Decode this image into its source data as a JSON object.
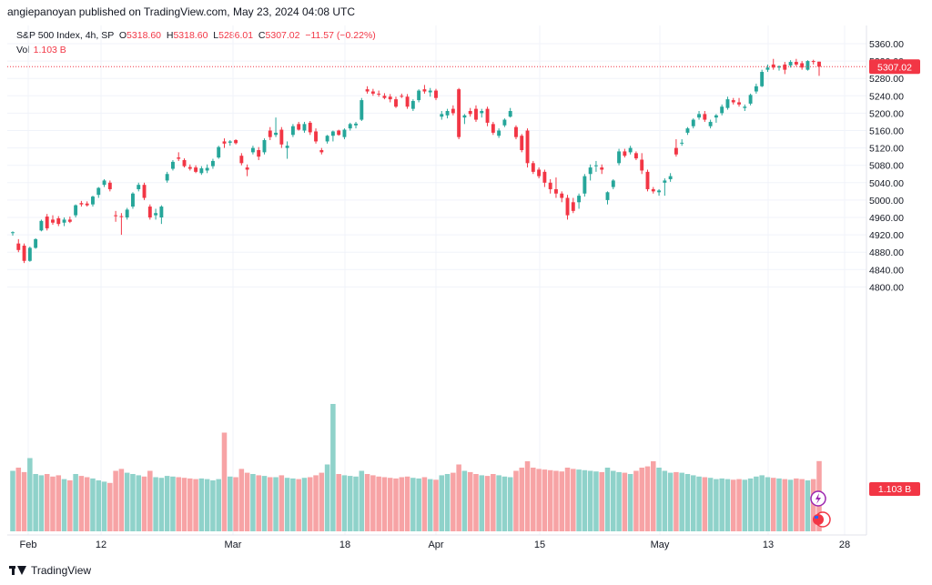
{
  "header": {
    "publisher_line": "angiepanoyan published on TradingView.com, May 23, 2024 04:08 UTC"
  },
  "legend": {
    "symbol": "S&P 500 Index, 4h, SP",
    "open_label": "O",
    "open": "5318.60",
    "high_label": "H",
    "high": "5318.60",
    "low_label": "L",
    "low": "5286.01",
    "close_label": "C",
    "close": "5307.02",
    "change": "−11.57 (−0.22%)",
    "vol_label": "Vol",
    "vol": "1.103 B"
  },
  "price_axis": {
    "ticks": [
      "5360.00",
      "5320.00",
      "5280.00",
      "5240.00",
      "5200.00",
      "5160.00",
      "5120.00",
      "5080.00",
      "5040.00",
      "5000.00",
      "4960.00",
      "4920.00",
      "4880.00",
      "4840.00",
      "4800.00"
    ],
    "last_price_label": "5307.02",
    "volume_label": "1.103 B"
  },
  "time_axis": {
    "labels": [
      "Feb",
      "12",
      "Mar",
      "18",
      "Apr",
      "15",
      "May",
      "13",
      "28"
    ]
  },
  "footer": {
    "brand": "TradingView"
  },
  "colors": {
    "up": "#26a69a",
    "down": "#f23645",
    "vol_up": "#8fd2ca",
    "vol_down": "#f7a3a5",
    "grid": "#f0f3fa",
    "axis_text": "#131722"
  },
  "chart_data": {
    "type": "candlestick",
    "symbol": "S&P 500 Index",
    "interval": "4h",
    "ylim": [
      4800,
      5380
    ],
    "last_price": 5307.02,
    "last_volume_billions": 1.103,
    "candles": [
      {
        "o": 4924,
        "h": 4928,
        "l": 4918,
        "c": 4926,
        "v": 0.95
      },
      {
        "o": 4900,
        "h": 4910,
        "l": 4880,
        "c": 4885,
        "v": 1.0
      },
      {
        "o": 4895,
        "h": 4900,
        "l": 4855,
        "c": 4860,
        "v": 0.93
      },
      {
        "o": 4860,
        "h": 4893,
        "l": 4858,
        "c": 4890,
        "v": 1.15
      },
      {
        "o": 4890,
        "h": 4912,
        "l": 4888,
        "c": 4910,
        "v": 0.9
      },
      {
        "o": 4930,
        "h": 4955,
        "l": 4928,
        "c": 4952,
        "v": 0.88
      },
      {
        "o": 4962,
        "h": 4968,
        "l": 4930,
        "c": 4935,
        "v": 0.9
      },
      {
        "o": 4955,
        "h": 4965,
        "l": 4943,
        "c": 4948,
        "v": 0.86
      },
      {
        "o": 4958,
        "h": 4963,
        "l": 4940,
        "c": 4945,
        "v": 0.88
      },
      {
        "o": 4948,
        "h": 4960,
        "l": 4940,
        "c": 4955,
        "v": 0.82
      },
      {
        "o": 4955,
        "h": 4962,
        "l": 4947,
        "c": 4950,
        "v": 0.8
      },
      {
        "o": 4965,
        "h": 4990,
        "l": 4960,
        "c": 4988,
        "v": 0.9
      },
      {
        "o": 4993,
        "h": 4998,
        "l": 4985,
        "c": 4990,
        "v": 0.87
      },
      {
        "o": 4992,
        "h": 4997,
        "l": 4985,
        "c": 4988,
        "v": 0.85
      },
      {
        "o": 4990,
        "h": 5010,
        "l": 4985,
        "c": 5008,
        "v": 0.83
      },
      {
        "o": 5012,
        "h": 5030,
        "l": 5005,
        "c": 5028,
        "v": 0.8
      },
      {
        "o": 5035,
        "h": 5048,
        "l": 5030,
        "c": 5045,
        "v": 0.78
      },
      {
        "o": 5040,
        "h": 5045,
        "l": 5020,
        "c": 5025,
        "v": 0.76
      },
      {
        "o": 4965,
        "h": 4975,
        "l": 4950,
        "c": 4963,
        "v": 0.95
      },
      {
        "o": 4963,
        "h": 4970,
        "l": 4920,
        "c": 4962,
        "v": 0.98
      },
      {
        "o": 4960,
        "h": 4982,
        "l": 4955,
        "c": 4978,
        "v": 0.92
      },
      {
        "o": 4985,
        "h": 5018,
        "l": 4980,
        "c": 5015,
        "v": 0.9
      },
      {
        "o": 5025,
        "h": 5040,
        "l": 5020,
        "c": 5035,
        "v": 0.88
      },
      {
        "o": 5035,
        "h": 5040,
        "l": 5000,
        "c": 5005,
        "v": 0.86
      },
      {
        "o": 4985,
        "h": 4990,
        "l": 4955,
        "c": 4960,
        "v": 0.95
      },
      {
        "o": 4965,
        "h": 4980,
        "l": 4955,
        "c": 4970,
        "v": 0.85
      },
      {
        "o": 4960,
        "h": 4988,
        "l": 4945,
        "c": 4985,
        "v": 0.84
      },
      {
        "o": 5045,
        "h": 5065,
        "l": 5040,
        "c": 5060,
        "v": 0.87
      },
      {
        "o": 5072,
        "h": 5092,
        "l": 5068,
        "c": 5088,
        "v": 0.86
      },
      {
        "o": 5098,
        "h": 5110,
        "l": 5090,
        "c": 5095,
        "v": 0.85
      },
      {
        "o": 5092,
        "h": 5096,
        "l": 5075,
        "c": 5078,
        "v": 0.84
      },
      {
        "o": 5076,
        "h": 5082,
        "l": 5068,
        "c": 5072,
        "v": 0.83
      },
      {
        "o": 5075,
        "h": 5080,
        "l": 5062,
        "c": 5065,
        "v": 0.82
      },
      {
        "o": 5062,
        "h": 5078,
        "l": 5058,
        "c": 5073,
        "v": 0.83
      },
      {
        "o": 5068,
        "h": 5082,
        "l": 5062,
        "c": 5074,
        "v": 0.82
      },
      {
        "o": 5078,
        "h": 5095,
        "l": 5072,
        "c": 5090,
        "v": 0.8
      },
      {
        "o": 5098,
        "h": 5125,
        "l": 5095,
        "c": 5122,
        "v": 0.82
      },
      {
        "o": 5135,
        "h": 5142,
        "l": 5120,
        "c": 5130,
        "v": 1.55
      },
      {
        "o": 5132,
        "h": 5138,
        "l": 5125,
        "c": 5135,
        "v": 0.86
      },
      {
        "o": 5138,
        "h": 5140,
        "l": 5128,
        "c": 5131,
        "v": 0.85
      },
      {
        "o": 5102,
        "h": 5108,
        "l": 5080,
        "c": 5085,
        "v": 0.98
      },
      {
        "o": 5075,
        "h": 5082,
        "l": 5055,
        "c": 5070,
        "v": 0.92
      },
      {
        "o": 5110,
        "h": 5125,
        "l": 5105,
        "c": 5120,
        "v": 0.9
      },
      {
        "o": 5115,
        "h": 5122,
        "l": 5092,
        "c": 5100,
        "v": 0.88
      },
      {
        "o": 5110,
        "h": 5142,
        "l": 5105,
        "c": 5138,
        "v": 0.87
      },
      {
        "o": 5160,
        "h": 5168,
        "l": 5138,
        "c": 5145,
        "v": 0.85
      },
      {
        "o": 5150,
        "h": 5190,
        "l": 5145,
        "c": 5155,
        "v": 0.85
      },
      {
        "o": 5162,
        "h": 5168,
        "l": 5120,
        "c": 5128,
        "v": 0.88
      },
      {
        "o": 5120,
        "h": 5135,
        "l": 5095,
        "c": 5125,
        "v": 0.84
      },
      {
        "o": 5150,
        "h": 5175,
        "l": 5145,
        "c": 5170,
        "v": 0.83
      },
      {
        "o": 5175,
        "h": 5180,
        "l": 5160,
        "c": 5162,
        "v": 0.82
      },
      {
        "o": 5160,
        "h": 5180,
        "l": 5155,
        "c": 5175,
        "v": 0.84
      },
      {
        "o": 5178,
        "h": 5182,
        "l": 5150,
        "c": 5156,
        "v": 0.85
      },
      {
        "o": 5158,
        "h": 5165,
        "l": 5130,
        "c": 5135,
        "v": 0.88
      },
      {
        "o": 5115,
        "h": 5120,
        "l": 5105,
        "c": 5110,
        "v": 0.92
      },
      {
        "o": 5135,
        "h": 5150,
        "l": 5130,
        "c": 5148,
        "v": 1.05
      },
      {
        "o": 5148,
        "h": 5160,
        "l": 5135,
        "c": 5158,
        "v": 2.0
      },
      {
        "o": 5160,
        "h": 5162,
        "l": 5148,
        "c": 5150,
        "v": 0.9
      },
      {
        "o": 5145,
        "h": 5165,
        "l": 5140,
        "c": 5162,
        "v": 0.88
      },
      {
        "o": 5165,
        "h": 5178,
        "l": 5160,
        "c": 5175,
        "v": 0.87
      },
      {
        "o": 5172,
        "h": 5180,
        "l": 5165,
        "c": 5176,
        "v": 0.86
      },
      {
        "o": 5185,
        "h": 5235,
        "l": 5182,
        "c": 5230,
        "v": 0.95
      },
      {
        "o": 5255,
        "h": 5262,
        "l": 5245,
        "c": 5250,
        "v": 0.9
      },
      {
        "o": 5250,
        "h": 5256,
        "l": 5240,
        "c": 5245,
        "v": 0.88
      },
      {
        "o": 5245,
        "h": 5252,
        "l": 5238,
        "c": 5243,
        "v": 0.86
      },
      {
        "o": 5240,
        "h": 5246,
        "l": 5232,
        "c": 5235,
        "v": 0.85
      },
      {
        "o": 5238,
        "h": 5244,
        "l": 5225,
        "c": 5232,
        "v": 0.84
      },
      {
        "o": 5232,
        "h": 5238,
        "l": 5212,
        "c": 5215,
        "v": 0.83
      },
      {
        "o": 5240,
        "h": 5245,
        "l": 5235,
        "c": 5238,
        "v": 0.85
      },
      {
        "o": 5238,
        "h": 5244,
        "l": 5210,
        "c": 5215,
        "v": 0.86
      },
      {
        "o": 5210,
        "h": 5232,
        "l": 5205,
        "c": 5228,
        "v": 0.84
      },
      {
        "o": 5230,
        "h": 5255,
        "l": 5225,
        "c": 5252,
        "v": 0.83
      },
      {
        "o": 5255,
        "h": 5265,
        "l": 5245,
        "c": 5250,
        "v": 0.85
      },
      {
        "o": 5248,
        "h": 5258,
        "l": 5238,
        "c": 5252,
        "v": 0.82
      },
      {
        "o": 5252,
        "h": 5256,
        "l": 5230,
        "c": 5235,
        "v": 0.81
      },
      {
        "o": 5192,
        "h": 5205,
        "l": 5185,
        "c": 5198,
        "v": 0.88
      },
      {
        "o": 5195,
        "h": 5210,
        "l": 5188,
        "c": 5205,
        "v": 0.9
      },
      {
        "o": 5210,
        "h": 5218,
        "l": 5195,
        "c": 5200,
        "v": 0.92
      },
      {
        "o": 5255,
        "h": 5258,
        "l": 5140,
        "c": 5145,
        "v": 1.05
      },
      {
        "o": 5190,
        "h": 5198,
        "l": 5175,
        "c": 5195,
        "v": 0.95
      },
      {
        "o": 5205,
        "h": 5212,
        "l": 5192,
        "c": 5198,
        "v": 0.93
      },
      {
        "o": 5210,
        "h": 5218,
        "l": 5180,
        "c": 5185,
        "v": 0.9
      },
      {
        "o": 5200,
        "h": 5210,
        "l": 5190,
        "c": 5205,
        "v": 0.88
      },
      {
        "o": 5210,
        "h": 5215,
        "l": 5170,
        "c": 5178,
        "v": 0.87
      },
      {
        "o": 5175,
        "h": 5180,
        "l": 5150,
        "c": 5155,
        "v": 0.9
      },
      {
        "o": 5148,
        "h": 5165,
        "l": 5143,
        "c": 5160,
        "v": 0.88
      },
      {
        "o": 5172,
        "h": 5188,
        "l": 5168,
        "c": 5185,
        "v": 0.86
      },
      {
        "o": 5192,
        "h": 5212,
        "l": 5190,
        "c": 5205,
        "v": 0.85
      },
      {
        "o": 5168,
        "h": 5172,
        "l": 5140,
        "c": 5145,
        "v": 0.95
      },
      {
        "o": 5148,
        "h": 5152,
        "l": 5110,
        "c": 5115,
        "v": 1.0
      },
      {
        "o": 5160,
        "h": 5165,
        "l": 5075,
        "c": 5085,
        "v": 1.1
      },
      {
        "o": 5085,
        "h": 5090,
        "l": 5060,
        "c": 5065,
        "v": 1.0
      },
      {
        "o": 5070,
        "h": 5075,
        "l": 5050,
        "c": 5055,
        "v": 0.98
      },
      {
        "o": 5065,
        "h": 5070,
        "l": 5030,
        "c": 5040,
        "v": 0.97
      },
      {
        "o": 5040,
        "h": 5048,
        "l": 5015,
        "c": 5025,
        "v": 0.96
      },
      {
        "o": 5025,
        "h": 5052,
        "l": 5005,
        "c": 5015,
        "v": 0.95
      },
      {
        "o": 5015,
        "h": 5020,
        "l": 4995,
        "c": 5005,
        "v": 0.94
      },
      {
        "o": 5005,
        "h": 5012,
        "l": 4955,
        "c": 4965,
        "v": 1.0
      },
      {
        "o": 4995,
        "h": 5005,
        "l": 4970,
        "c": 4975,
        "v": 0.98
      },
      {
        "o": 4995,
        "h": 5015,
        "l": 4980,
        "c": 5010,
        "v": 0.97
      },
      {
        "o": 5015,
        "h": 5060,
        "l": 5008,
        "c": 5055,
        "v": 0.96
      },
      {
        "o": 5060,
        "h": 5082,
        "l": 5045,
        "c": 5075,
        "v": 0.95
      },
      {
        "o": 5078,
        "h": 5090,
        "l": 5065,
        "c": 5080,
        "v": 0.94
      },
      {
        "o": 5075,
        "h": 5082,
        "l": 5060,
        "c": 5070,
        "v": 0.93
      },
      {
        "o": 5000,
        "h": 5020,
        "l": 4990,
        "c": 5018,
        "v": 1.0
      },
      {
        "o": 5030,
        "h": 5048,
        "l": 5025,
        "c": 5045,
        "v": 0.95
      },
      {
        "o": 5085,
        "h": 5118,
        "l": 5080,
        "c": 5112,
        "v": 0.93
      },
      {
        "o": 5112,
        "h": 5118,
        "l": 5098,
        "c": 5102,
        "v": 0.92
      },
      {
        "o": 5110,
        "h": 5125,
        "l": 5105,
        "c": 5120,
        "v": 0.9
      },
      {
        "o": 5108,
        "h": 5112,
        "l": 5092,
        "c": 5096,
        "v": 0.95
      },
      {
        "o": 5093,
        "h": 5108,
        "l": 5060,
        "c": 5068,
        "v": 1.0
      },
      {
        "o": 5065,
        "h": 5070,
        "l": 5020,
        "c": 5025,
        "v": 1.02
      },
      {
        "o": 5025,
        "h": 5030,
        "l": 5015,
        "c": 5020,
        "v": 1.1
      },
      {
        "o": 5018,
        "h": 5025,
        "l": 5010,
        "c": 5022,
        "v": 1.0
      },
      {
        "o": 5040,
        "h": 5050,
        "l": 5010,
        "c": 5045,
        "v": 0.95
      },
      {
        "o": 5048,
        "h": 5062,
        "l": 5042,
        "c": 5055,
        "v": 0.92
      },
      {
        "o": 5120,
        "h": 5140,
        "l": 5100,
        "c": 5105,
        "v": 0.93
      },
      {
        "o": 5130,
        "h": 5140,
        "l": 5125,
        "c": 5132,
        "v": 0.92
      },
      {
        "o": 5155,
        "h": 5168,
        "l": 5150,
        "c": 5165,
        "v": 0.9
      },
      {
        "o": 5170,
        "h": 5188,
        "l": 5165,
        "c": 5185,
        "v": 0.88
      },
      {
        "o": 5190,
        "h": 5205,
        "l": 5185,
        "c": 5198,
        "v": 0.86
      },
      {
        "o": 5198,
        "h": 5205,
        "l": 5180,
        "c": 5185,
        "v": 0.85
      },
      {
        "o": 5170,
        "h": 5185,
        "l": 5165,
        "c": 5180,
        "v": 0.84
      },
      {
        "o": 5190,
        "h": 5198,
        "l": 5178,
        "c": 5195,
        "v": 0.82
      },
      {
        "o": 5200,
        "h": 5220,
        "l": 5195,
        "c": 5215,
        "v": 0.83
      },
      {
        "o": 5212,
        "h": 5238,
        "l": 5208,
        "c": 5232,
        "v": 0.82
      },
      {
        "o": 5230,
        "h": 5235,
        "l": 5220,
        "c": 5225,
        "v": 0.81
      },
      {
        "o": 5225,
        "h": 5235,
        "l": 5215,
        "c": 5220,
        "v": 0.82
      },
      {
        "o": 5212,
        "h": 5220,
        "l": 5205,
        "c": 5215,
        "v": 0.81
      },
      {
        "o": 5222,
        "h": 5245,
        "l": 5218,
        "c": 5242,
        "v": 0.83
      },
      {
        "o": 5250,
        "h": 5268,
        "l": 5245,
        "c": 5262,
        "v": 0.86
      },
      {
        "o": 5262,
        "h": 5300,
        "l": 5260,
        "c": 5295,
        "v": 0.88
      },
      {
        "o": 5300,
        "h": 5312,
        "l": 5295,
        "c": 5305,
        "v": 0.85
      },
      {
        "o": 5312,
        "h": 5325,
        "l": 5300,
        "c": 5305,
        "v": 0.84
      },
      {
        "o": 5305,
        "h": 5310,
        "l": 5298,
        "c": 5308,
        "v": 0.83
      },
      {
        "o": 5312,
        "h": 5318,
        "l": 5290,
        "c": 5300,
        "v": 0.82
      },
      {
        "o": 5310,
        "h": 5322,
        "l": 5305,
        "c": 5318,
        "v": 0.81
      },
      {
        "o": 5318,
        "h": 5325,
        "l": 5308,
        "c": 5312,
        "v": 0.83
      },
      {
        "o": 5315,
        "h": 5320,
        "l": 5300,
        "c": 5305,
        "v": 0.82
      },
      {
        "o": 5300,
        "h": 5322,
        "l": 5298,
        "c": 5320,
        "v": 0.8
      },
      {
        "o": 5320,
        "h": 5323,
        "l": 5312,
        "c": 5318,
        "v": 0.82
      },
      {
        "o": 5318.6,
        "h": 5318.6,
        "l": 5286.01,
        "c": 5307.02,
        "v": 1.103
      }
    ]
  }
}
